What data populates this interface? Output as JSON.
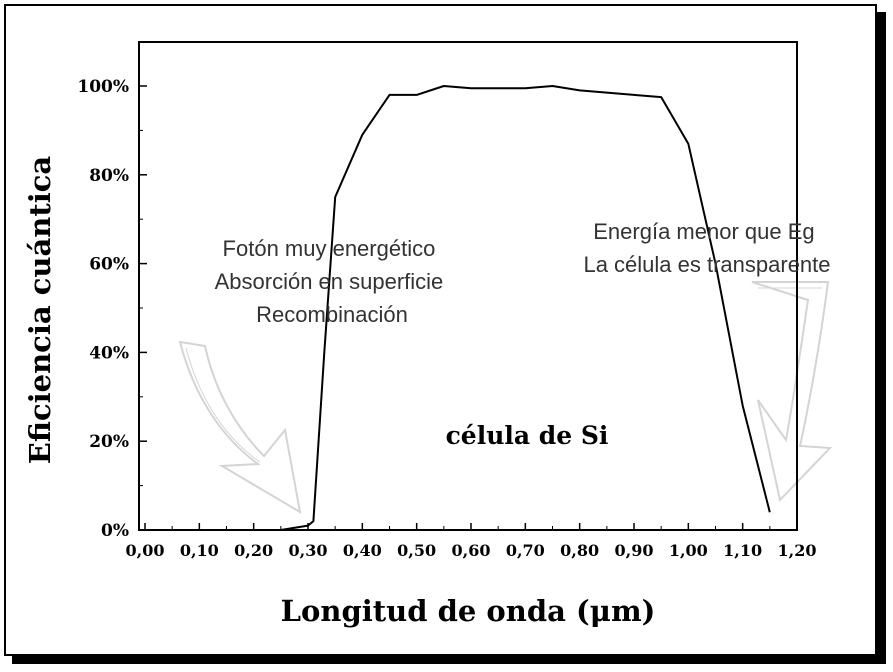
{
  "chart_data": {
    "type": "line",
    "xlabel": "Longitud de onda (μm)",
    "ylabel": "Eficiencia cuántica",
    "xlim": [
      0.0,
      1.2
    ],
    "ylim": [
      0,
      1.1
    ],
    "x_ticks": [
      0.0,
      0.1,
      0.2,
      0.3,
      0.4,
      0.5,
      0.6,
      0.7,
      0.8,
      0.9,
      1.0,
      1.1,
      1.2
    ],
    "x_tick_labels": [
      "0,00",
      "0,10",
      "0,20",
      "0,30",
      "0,40",
      "0,50",
      "0,60",
      "0,70",
      "0,80",
      "0,90",
      "1,00",
      "1,10",
      "1,20"
    ],
    "y_ticks": [
      0,
      0.2,
      0.4,
      0.6,
      0.8,
      1.0
    ],
    "y_tick_labels": [
      "0%",
      "20%",
      "40%",
      "60%",
      "80%",
      "100%"
    ],
    "grid": false,
    "legend": "none",
    "series": [
      {
        "x": [
          0.0,
          0.1,
          0.25,
          0.3,
          0.31,
          0.33,
          0.35,
          0.4,
          0.45,
          0.5,
          0.55,
          0.6,
          0.7,
          0.75,
          0.8,
          0.9,
          0.95,
          1.0,
          1.05,
          1.1,
          1.15
        ],
        "y": [
          0.0,
          0.0,
          0.0,
          0.01,
          0.02,
          0.4,
          0.75,
          0.89,
          0.98,
          0.98,
          1.0,
          0.995,
          0.995,
          1.0,
          0.99,
          0.98,
          0.975,
          0.87,
          0.6,
          0.28,
          0.04
        ]
      }
    ],
    "annotations": [
      {
        "id": "left",
        "lines": [
          "Fotón muy energético",
          "Absorción en superficie",
          "Recombinación"
        ]
      },
      {
        "id": "right",
        "lines": [
          "Energía menor que Eg",
          "La célula es transparente"
        ]
      },
      {
        "id": "cell",
        "lines": [
          "célula de Si"
        ]
      }
    ],
    "colors": {
      "line": "#000000",
      "axes": "#000000",
      "annotation_text": "#333333",
      "arrow_outline": "#d0d0d0"
    }
  }
}
